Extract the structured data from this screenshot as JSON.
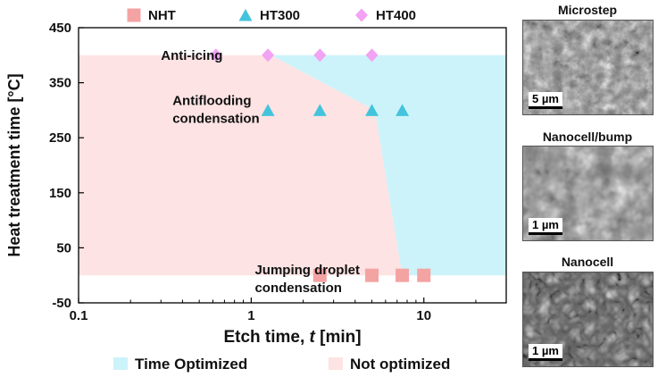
{
  "chart_data": {
    "type": "scatter",
    "xlabel_prefix": "Etch time, ",
    "xlabel_var": "t",
    "xlabel_unit": " [min]",
    "ylabel": "Heat treatment time [°C]",
    "x_scale": "log",
    "xlim": [
      0.1,
      30
    ],
    "ylim": [
      -50,
      450
    ],
    "x_ticks": [
      0.1,
      1,
      10
    ],
    "x_tick_labels": [
      "0.1",
      "1",
      "10"
    ],
    "y_ticks": [
      450,
      350,
      250,
      150,
      50,
      -50
    ],
    "y_tick_labels": [
      "450",
      "350",
      "250",
      "150",
      "50",
      "-50"
    ],
    "grid": false,
    "series": [
      {
        "name": "NHT",
        "marker": "square",
        "color": "#f4a3a3",
        "x": [
          2.5,
          5,
          7.5,
          10
        ],
        "y": [
          0,
          0,
          0,
          0
        ]
      },
      {
        "name": "HT300",
        "marker": "triangle",
        "color": "#43c4dc",
        "x": [
          1.25,
          2.5,
          5,
          7.5
        ],
        "y": [
          300,
          300,
          300,
          300
        ]
      },
      {
        "name": "HT400",
        "marker": "diamond",
        "color": "#f3a3f3",
        "x": [
          0.625,
          1.25,
          2.5,
          5
        ],
        "y": [
          400,
          400,
          400,
          400
        ]
      }
    ],
    "regions": [
      {
        "name": "Not optimized",
        "color": "#fde3e3",
        "polygon": [
          [
            0.1,
            400
          ],
          [
            1.3,
            400
          ],
          [
            5.2,
            300
          ],
          [
            7.5,
            0
          ],
          [
            0.1,
            0
          ]
        ]
      },
      {
        "name": "Time Optimized",
        "color": "#cdf3fa",
        "polygon": [
          [
            1.3,
            400
          ],
          [
            30,
            400
          ],
          [
            30,
            0
          ],
          [
            7.5,
            0
          ],
          [
            5.2,
            300
          ]
        ]
      }
    ],
    "annotations": [
      {
        "text": "Anti-icing",
        "x": 0.3,
        "y": 400
      },
      {
        "text": "Antiflooding",
        "x": 0.35,
        "y": 318
      },
      {
        "text": "condensation",
        "x": 0.35,
        "y": 285
      },
      {
        "text": "Jumping droplet",
        "x": 1.05,
        "y": 10
      },
      {
        "text": "condensation",
        "x": 1.05,
        "y": -22
      }
    ],
    "legend_top": [
      "NHT",
      "HT300",
      "HT400"
    ],
    "legend_bottom": [
      {
        "label": "Time Optimized",
        "color": "#cdf3fa"
      },
      {
        "label": "Not optimized",
        "color": "#fde3e3"
      }
    ]
  },
  "micrographs": [
    {
      "title": "Microstep",
      "scale": "5 µm"
    },
    {
      "title": "Nanocell/bump",
      "scale": "1 µm"
    },
    {
      "title": "Nanocell",
      "scale": "1 µm"
    }
  ]
}
